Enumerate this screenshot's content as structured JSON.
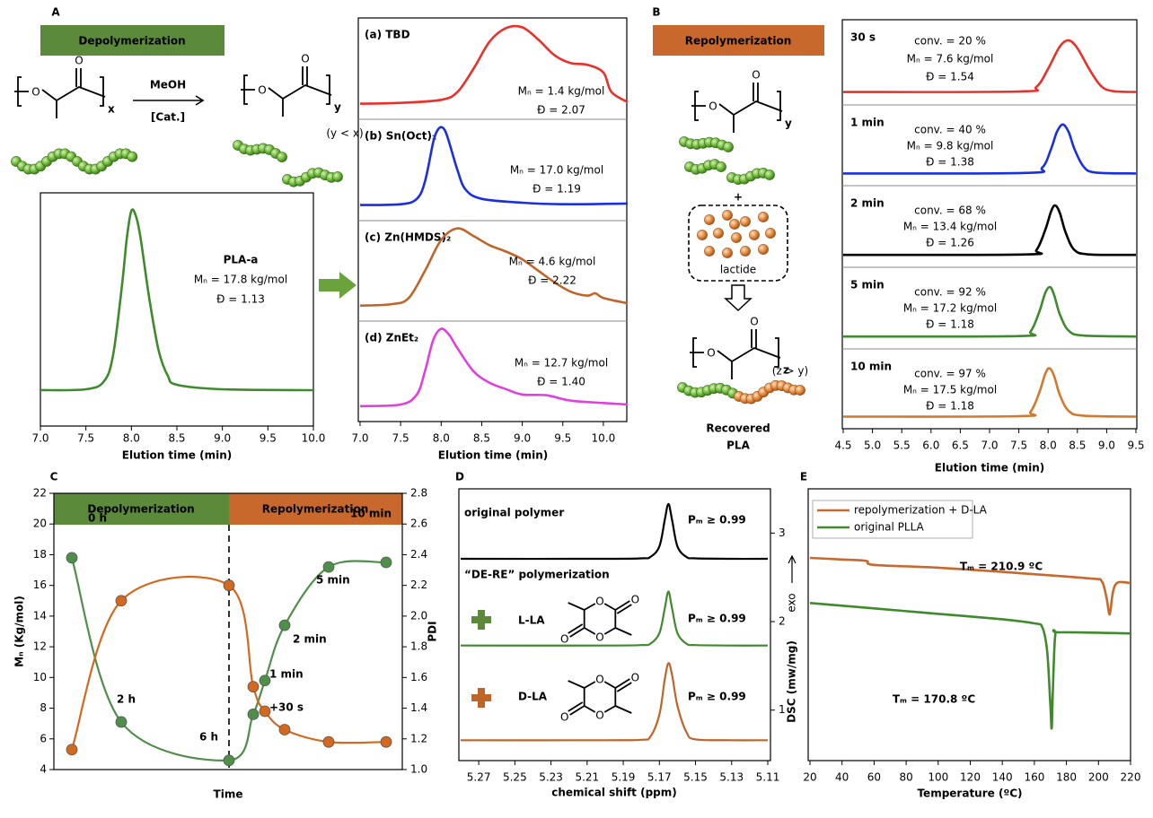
{
  "panel_labels": [
    "A",
    "B",
    "C",
    "D",
    "E"
  ],
  "atom": "O",
  "scheme_a": {
    "banner": "Depolymerization",
    "reagent": "MeOH",
    "catalyst": "[Cat.]",
    "sub_start": "x",
    "sub_end": "y",
    "condition": "(y < x)"
  },
  "scheme_b": {
    "banner": "Repolymerization",
    "sub_start": "y",
    "plus": "+",
    "monomer": "lactide",
    "sub_end": "z",
    "condition": "(z > y)",
    "product": [
      "Recovered",
      "PLA"
    ]
  },
  "chart_data": [
    {
      "type": "line",
      "xlabel": "Elution time (min)",
      "xlim": [
        7.0,
        10.0
      ],
      "xticks": [
        {
          "value": 7.0,
          "label": "7.0"
        },
        7.5,
        {
          "value": 8.0,
          "label": "8.0"
        },
        8.5,
        {
          "value": 9.0,
          "label": "9.0"
        },
        9.5,
        {
          "value": 10.0,
          "label": "10.0"
        }
      ],
      "ylim": [
        -0.2,
        1.1
      ],
      "annotations": [
        "PLA-a",
        "Mₙ = 17.8 kg/mol",
        "Đ = 1.13"
      ],
      "series": [
        {
          "color": "#3f8a2c",
          "x": [
            7.0,
            7.5,
            7.7,
            7.8,
            7.9,
            7.95,
            8.0,
            8.05,
            8.1,
            8.2,
            8.3,
            8.4,
            8.5,
            9.0,
            10.0
          ],
          "values": [
            0,
            0.005,
            0.05,
            0.2,
            0.6,
            0.85,
            1.0,
            0.97,
            0.85,
            0.5,
            0.22,
            0.08,
            0.03,
            0.005,
            0
          ]
        }
      ]
    },
    {
      "type": "line",
      "xlabel": "Elution time (min)",
      "xlim": [
        7.0,
        10.3
      ],
      "xticks": [
        {
          "value": 7.0,
          "label": "7.0"
        },
        7.5,
        {
          "value": 8.0,
          "label": "8.0"
        },
        8.5,
        {
          "value": 9.0,
          "label": "9.0"
        },
        9.5,
        {
          "value": 10.0,
          "label": "10.0"
        }
      ],
      "ylim": [
        -0.2,
        1.1
      ],
      "panels": [
        {
          "title": "(a) TBD",
          "annotations": [
            "Mₙ = 1.4 kg/mol",
            "Đ = 2.07"
          ],
          "series": [
            {
              "color": "#e8312a",
              "x": [
                7.0,
                7.5,
                8.0,
                8.2,
                8.4,
                8.6,
                8.8,
                9.0,
                9.2,
                9.4,
                9.6,
                9.8,
                10.0,
                10.1,
                10.3
              ],
              "values": [
                0,
                0.01,
                0.05,
                0.15,
                0.45,
                0.8,
                0.97,
                0.98,
                0.82,
                0.62,
                0.52,
                0.5,
                0.4,
                0.15,
                0.02
              ]
            }
          ]
        },
        {
          "title": "(b) Sn(Oct)₂",
          "annotations": [
            "Mₙ = 17.0 kg/mol",
            "Đ = 1.19"
          ],
          "series": [
            {
              "color": "#1a2fe0",
              "x": [
                7.0,
                7.5,
                7.7,
                7.8,
                7.9,
                7.95,
                8.0,
                8.05,
                8.1,
                8.2,
                8.3,
                8.5,
                9.0,
                9.5,
                10.3
              ],
              "values": [
                0,
                0.01,
                0.08,
                0.3,
                0.8,
                0.95,
                1.0,
                0.95,
                0.8,
                0.45,
                0.2,
                0.08,
                0.03,
                0.01,
                0.02
              ]
            }
          ]
        },
        {
          "title": "(c) Zn(HMDS)₂",
          "annotations": [
            "Mₙ = 4.6 kg/mol",
            "Đ = 2.22"
          ],
          "series": [
            {
              "color": "#c0652a",
              "x": [
                7.0,
                7.4,
                7.6,
                7.8,
                8.0,
                8.2,
                8.4,
                8.6,
                8.8,
                9.0,
                9.2,
                9.4,
                9.6,
                9.8,
                9.9,
                10.0,
                10.3
              ],
              "values": [
                0,
                0.02,
                0.1,
                0.45,
                0.85,
                1.0,
                0.9,
                0.78,
                0.7,
                0.6,
                0.45,
                0.3,
                0.18,
                0.13,
                0.16,
                0.1,
                0.03
              ]
            }
          ]
        },
        {
          "title": "(d) ZnEt₂",
          "annotations": [
            "Mₙ = 12.7 kg/mol",
            "Đ = 1.40"
          ],
          "series": [
            {
              "color": "#e040e0",
              "x": [
                7.0,
                7.5,
                7.7,
                7.8,
                7.9,
                8.0,
                8.1,
                8.2,
                8.4,
                8.6,
                8.8,
                9.0,
                9.3,
                9.6,
                10.0,
                10.3
              ],
              "values": [
                0,
                0.02,
                0.15,
                0.45,
                0.85,
                1.0,
                0.92,
                0.75,
                0.45,
                0.3,
                0.22,
                0.15,
                0.14,
                0.07,
                0.04,
                0.02
              ]
            }
          ]
        }
      ]
    },
    {
      "type": "line",
      "xlabel": "Elution time (min)",
      "xlim": [
        4.5,
        9.5
      ],
      "xticks": [
        4.5,
        {
          "value": 5.0,
          "label": "5.0"
        },
        5.5,
        {
          "value": 6.0,
          "label": "6.0"
        },
        6.5,
        {
          "value": 7.0,
          "label": "7.0"
        },
        7.5,
        {
          "value": 8.0,
          "label": "8.0"
        },
        8.5,
        {
          "value": 9.0,
          "label": "9.0"
        },
        9.5
      ],
      "ylim": [
        -0.25,
        1.4
      ],
      "panels": [
        {
          "title": "30 s",
          "annotations": [
            "conv. = 20 %",
            "Mₙ = 7.6 kg/mol",
            "Đ = 1.54"
          ],
          "series": [
            {
              "color": "#e8312a",
              "x": [
                4.5,
                7.5,
                7.8,
                8.0,
                8.2,
                8.35,
                8.5,
                8.7,
                8.9,
                9.1,
                9.5
              ],
              "values": [
                0,
                0.01,
                0.1,
                0.45,
                0.88,
                1.0,
                0.85,
                0.45,
                0.12,
                0.02,
                0
              ]
            }
          ]
        },
        {
          "title": "1 min",
          "annotations": [
            "conv. = 40 %",
            "Mₙ = 9.8 kg/mol",
            "Đ = 1.38"
          ],
          "series": [
            {
              "color": "#1a2fe0",
              "x": [
                4.5,
                7.6,
                7.9,
                8.05,
                8.15,
                8.25,
                8.35,
                8.45,
                8.6,
                8.8,
                9.5
              ],
              "values": [
                0,
                0.01,
                0.12,
                0.5,
                0.85,
                1.0,
                0.85,
                0.5,
                0.15,
                0.02,
                0
              ]
            }
          ]
        },
        {
          "title": "2 min",
          "annotations": [
            "conv. = 68 %",
            "Mₙ = 13.4 kg/mol",
            "Đ = 1.26"
          ],
          "series": [
            {
              "color": "#000000",
              "x": [
                4.5,
                7.6,
                7.8,
                7.95,
                8.05,
                8.12,
                8.2,
                8.3,
                8.45,
                8.7,
                9.5
              ],
              "values": [
                0,
                0.01,
                0.1,
                0.5,
                0.88,
                1.0,
                0.85,
                0.45,
                0.1,
                0.01,
                0
              ]
            }
          ]
        },
        {
          "title": "5 min",
          "annotations": [
            "conv. = 92 %",
            "Mₙ = 17.2 kg/mol",
            "Đ = 1.18"
          ],
          "series": [
            {
              "color": "#3f8a2c",
              "x": [
                4.5,
                7.5,
                7.7,
                7.85,
                7.95,
                8.03,
                8.1,
                8.2,
                8.35,
                8.6,
                9.5
              ],
              "values": [
                0,
                0.01,
                0.1,
                0.5,
                0.88,
                1.0,
                0.85,
                0.45,
                0.12,
                0.02,
                0
              ]
            }
          ]
        },
        {
          "title": "10 min",
          "annotations": [
            "conv. = 97 %",
            "Mₙ = 17.5 kg/mol",
            "Đ = 1.18"
          ],
          "series": [
            {
              "color": "#d07a30",
              "x": [
                4.5,
                7.5,
                7.7,
                7.85,
                7.95,
                8.02,
                8.1,
                8.2,
                8.35,
                8.6,
                9.5
              ],
              "values": [
                0,
                0.01,
                0.1,
                0.5,
                0.88,
                1.0,
                0.85,
                0.45,
                0.12,
                0.02,
                0
              ]
            }
          ]
        }
      ]
    },
    {
      "type": "line",
      "bands": [
        "Depolymerization",
        "Repolymerization"
      ],
      "xlabel": "Time",
      "ylabel": "Mₙ (Kg/mol)",
      "y2label": "PDI",
      "categories": [
        "0 h",
        "2 h",
        "6 h",
        "+30 s",
        "1 min",
        "2 min",
        "5 min",
        "10 min"
      ],
      "ylim": [
        4,
        22
      ],
      "yticks": [
        4,
        6,
        8,
        10,
        12,
        14,
        16,
        18,
        20,
        22
      ],
      "y2lim": [
        1.0,
        2.8
      ],
      "y2ticks": [
        {
          "value": 1.0,
          "label": "1.0"
        },
        1.2,
        1.4,
        1.6,
        1.8,
        {
          "value": 2.0,
          "label": "2.0"
        },
        2.2,
        2.4,
        2.6,
        2.8
      ],
      "series": [
        {
          "color": "#4f8f4a",
          "values": [
            17.8,
            7.1,
            4.6,
            7.6,
            9.8,
            13.4,
            17.2,
            17.5
          ]
        },
        {
          "color": "#d2691e",
          "axis": "y2",
          "values": [
            1.13,
            2.1,
            2.2,
            1.54,
            1.38,
            1.26,
            1.18,
            1.18
          ]
        }
      ]
    },
    {
      "type": "line",
      "xlabel": "chemical shift  (ppm)",
      "xlim": [
        5.28,
        5.11
      ],
      "xticks": [
        5.27,
        5.25,
        5.23,
        5.21,
        5.19,
        5.17,
        5.15,
        5.13,
        5.11
      ],
      "y2lim": [
        0.43,
        3.5
      ],
      "y2ticks": [
        1,
        2,
        3
      ],
      "annotations": [
        "original polymer",
        "“DE-RE” polymerization",
        "L-LA",
        "D-LA",
        "Pₘ ≥ 0.99",
        "Pₘ ≥ 0.99",
        "Pₘ ≥ 0.99"
      ],
      "series": [
        {
          "color": "#000000",
          "axis": "y2",
          "x": [
            5.28,
            5.2,
            5.18,
            5.175,
            5.17,
            5.167,
            5.165,
            5.163,
            5.16,
            5.155,
            5.15,
            5.13,
            5.11
          ],
          "values": [
            2.71,
            2.71,
            2.715,
            2.73,
            2.85,
            3.15,
            3.33,
            3.15,
            2.85,
            2.73,
            2.715,
            2.71,
            2.71
          ]
        },
        {
          "color": "#3f8a2c",
          "axis": "y2",
          "x": [
            5.28,
            5.2,
            5.18,
            5.175,
            5.17,
            5.167,
            5.165,
            5.163,
            5.16,
            5.155,
            5.15,
            5.13,
            5.11
          ],
          "values": [
            1.73,
            1.73,
            1.735,
            1.75,
            1.87,
            2.15,
            2.34,
            2.15,
            1.87,
            1.75,
            1.735,
            1.73,
            1.73
          ]
        },
        {
          "color": "#c0652a",
          "axis": "y2",
          "x": [
            5.28,
            5.2,
            5.18,
            5.175,
            5.17,
            5.167,
            5.165,
            5.163,
            5.16,
            5.155,
            5.15,
            5.13,
            5.11
          ],
          "values": [
            0.66,
            0.66,
            0.665,
            0.7,
            0.95,
            1.35,
            1.53,
            1.4,
            1.05,
            0.75,
            0.67,
            0.66,
            0.66
          ]
        }
      ]
    },
    {
      "type": "line",
      "xlabel": "Temperature (ºC)",
      "ylabel": "DSC (mw/mg)",
      "direction_label": "exo",
      "xlim": [
        20,
        220
      ],
      "xticks": [
        20,
        40,
        60,
        80,
        100,
        120,
        140,
        160,
        180,
        200,
        220
      ],
      "ylim": [
        0,
        1
      ],
      "legend": "upper left",
      "annotations": [
        "Tₘ = 210.9 ºC",
        "Tₘ = 170.8 ºC"
      ],
      "series": [
        {
          "name": "repolymerization + D-LA",
          "color": "#c8682c",
          "x": [
            20,
            40,
            55,
            60,
            100,
            150,
            195,
            202,
            205,
            207,
            209,
            212,
            220
          ],
          "values": [
            0.746,
            0.74,
            0.735,
            0.72,
            0.71,
            0.69,
            0.67,
            0.66,
            0.6,
            0.538,
            0.62,
            0.655,
            0.653
          ]
        },
        {
          "name": "original PLLA",
          "color": "#3f8a2c",
          "x": [
            20,
            60,
            100,
            140,
            160,
            165,
            168,
            170,
            170.8,
            171.5,
            173,
            176,
            220
          ],
          "values": [
            0.58,
            0.56,
            0.54,
            0.52,
            0.505,
            0.49,
            0.4,
            0.2,
            0.119,
            0.25,
            0.46,
            0.472,
            0.468
          ]
        }
      ]
    }
  ]
}
